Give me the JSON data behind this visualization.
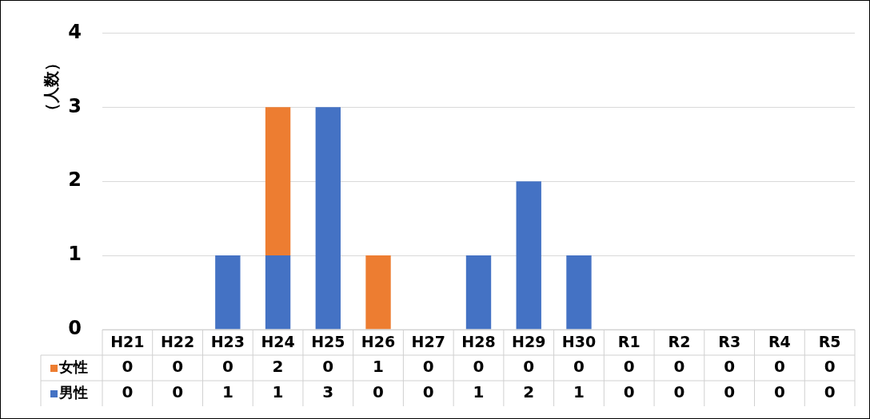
{
  "chart_data": {
    "type": "bar",
    "ylabel": "（人数）",
    "categories": [
      "H21",
      "H22",
      "H23",
      "H24",
      "H25",
      "H26",
      "H27",
      "H28",
      "H29",
      "H30",
      "R1",
      "R2",
      "R3",
      "R4",
      "R5"
    ],
    "series": [
      {
        "name": "男性",
        "color": "#4472c4",
        "values": [
          0,
          0,
          1,
          1,
          3,
          0,
          0,
          1,
          2,
          1,
          0,
          0,
          0,
          0,
          0
        ]
      },
      {
        "name": "女性",
        "color": "#ed7d31",
        "values": [
          0,
          0,
          0,
          2,
          0,
          1,
          0,
          0,
          0,
          0,
          0,
          0,
          0,
          0,
          0
        ]
      }
    ],
    "stacked": true,
    "ylim": [
      0,
      4
    ],
    "yticks": [
      0,
      1,
      2,
      3,
      4
    ],
    "grid": "y",
    "legend": "bottom",
    "data_labels": true
  }
}
